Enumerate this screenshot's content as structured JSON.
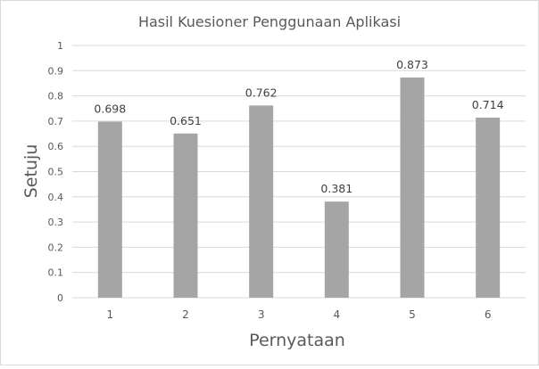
{
  "chart_data": {
    "type": "bar",
    "title": "Hasil Kuesioner Penggunaan Aplikasi",
    "xlabel": "Pernyataan",
    "ylabel": "Setuju",
    "categories": [
      "1",
      "2",
      "3",
      "4",
      "5",
      "6"
    ],
    "series": [
      {
        "values": [
          0.698,
          0.651,
          0.762,
          0.381,
          0.873,
          0.714
        ],
        "color": "#a5a5a5"
      }
    ],
    "data_labels": [
      "0.698",
      "0.651",
      "0.762",
      "0.381",
      "0.873",
      "0.714"
    ],
    "ylim": [
      0,
      1
    ],
    "yticks": [
      "0",
      "0.1",
      "0.2",
      "0.3",
      "0.4",
      "0.5",
      "0.6",
      "0.7",
      "0.8",
      "0.9",
      "1"
    ],
    "grid": true,
    "legend": "none",
    "colors": {
      "bar": "#a5a5a5",
      "grid": "#d9d9d9",
      "text": "#595959"
    }
  }
}
